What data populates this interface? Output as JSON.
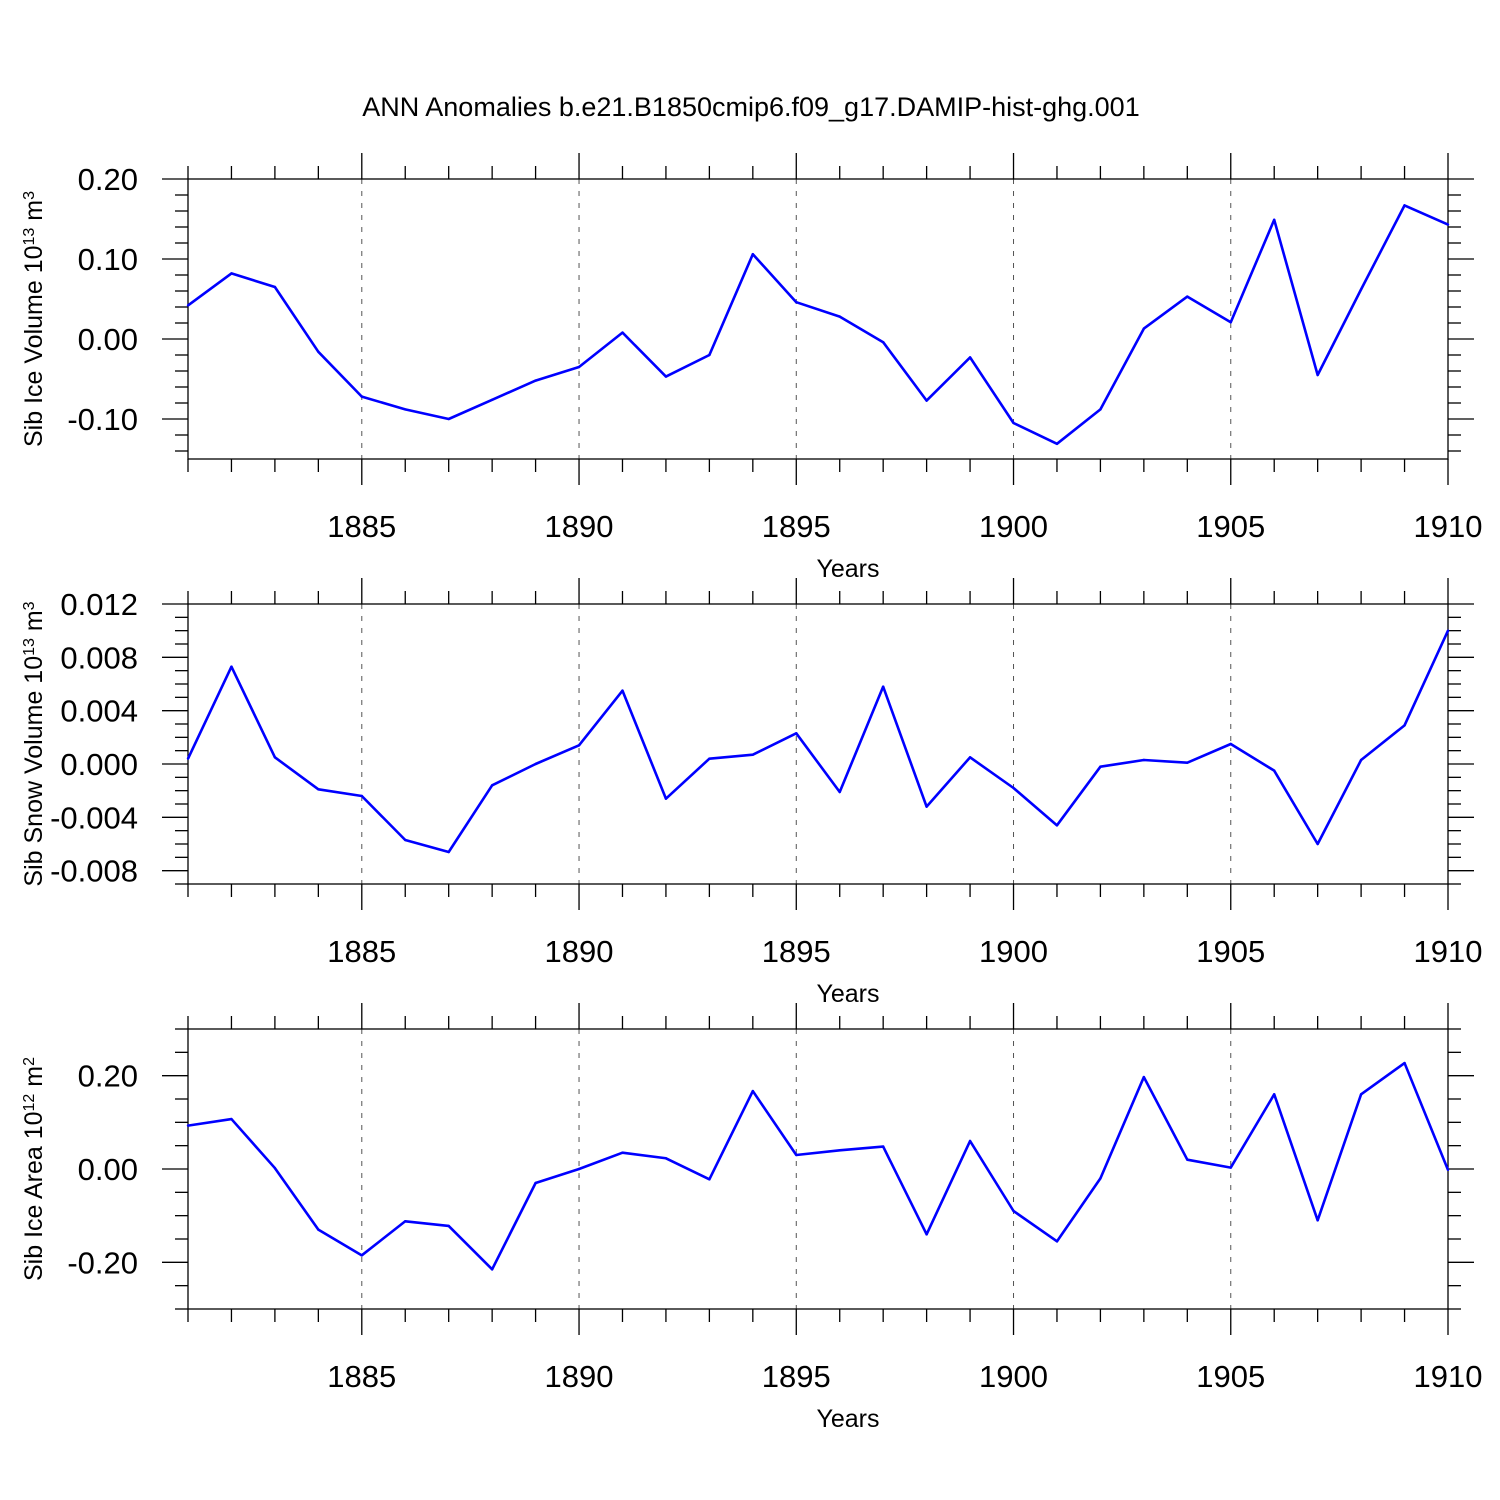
{
  "title": "ANN Anomalies b.e21.B1850cmip6.f09_g17.DAMIP-hist-ghg.001",
  "line_color": "#0000ff",
  "chart_data": [
    {
      "type": "line",
      "title": "ANN Anomalies b.e21.B1850cmip6.f09_g17.DAMIP-hist-ghg.001",
      "xlabel": "Years",
      "ylabel": {
        "base": "Sib Ice Volume 10",
        "exp": "13",
        "unit": " m",
        "unit_exp": "3"
      },
      "xlim": [
        1881,
        1910
      ],
      "ylim": [
        -0.15,
        0.2
      ],
      "xticks": [
        1885,
        1890,
        1895,
        1900,
        1905,
        1910
      ],
      "xtick_labels": [
        "1885",
        "1890",
        "1895",
        "1900",
        "1905",
        "1910"
      ],
      "yticks": [
        0.2,
        0.1,
        0.0,
        -0.1
      ],
      "ytick_labels": [
        "0.20",
        "0.10",
        "0.00",
        "-0.10"
      ],
      "y_minor_step": 0.02,
      "grid": "vertical dashed at major x ticks",
      "x": [
        1881,
        1882,
        1883,
        1884,
        1885,
        1886,
        1887,
        1888,
        1889,
        1890,
        1891,
        1892,
        1893,
        1894,
        1895,
        1896,
        1897,
        1898,
        1899,
        1900,
        1901,
        1902,
        1903,
        1904,
        1905,
        1906,
        1907,
        1908,
        1909,
        1910
      ],
      "series": [
        {
          "values": [
            0.042,
            0.082,
            0.065,
            -0.016,
            -0.072,
            -0.088,
            -0.1,
            -0.076,
            -0.052,
            -0.035,
            0.008,
            -0.047,
            -0.02,
            0.106,
            0.046,
            0.028,
            -0.004,
            -0.077,
            -0.023,
            -0.105,
            -0.131,
            -0.088,
            0.013,
            0.053,
            0.021,
            0.149,
            -0.045,
            0.062,
            0.167,
            0.143
          ]
        }
      ]
    },
    {
      "type": "line",
      "xlabel": "Years",
      "ylabel": {
        "base": "Sib Snow Volume 10",
        "exp": "13",
        "unit": " m",
        "unit_exp": "3"
      },
      "xlim": [
        1881,
        1910
      ],
      "ylim": [
        -0.009,
        0.012
      ],
      "xticks": [
        1885,
        1890,
        1895,
        1900,
        1905,
        1910
      ],
      "xtick_labels": [
        "1885",
        "1890",
        "1895",
        "1900",
        "1905",
        "1910"
      ],
      "yticks": [
        0.012,
        0.008,
        0.004,
        0.0,
        -0.004,
        -0.008
      ],
      "ytick_labels": [
        "0.012",
        "0.008",
        "0.004",
        "0.000",
        "-0.004",
        "-0.008"
      ],
      "y_minor_step": 0.001,
      "grid": "vertical dashed at major x ticks",
      "x": [
        1881,
        1882,
        1883,
        1884,
        1885,
        1886,
        1887,
        1888,
        1889,
        1890,
        1891,
        1892,
        1893,
        1894,
        1895,
        1896,
        1897,
        1898,
        1899,
        1900,
        1901,
        1902,
        1903,
        1904,
        1905,
        1906,
        1907,
        1908,
        1909,
        1910
      ],
      "series": [
        {
          "values": [
            0.0004,
            0.0073,
            0.0005,
            -0.0019,
            -0.0024,
            -0.0057,
            -0.0066,
            -0.0016,
            0.0,
            0.0014,
            0.0055,
            -0.0026,
            0.0004,
            0.0007,
            0.0023,
            -0.0021,
            0.0058,
            -0.0032,
            0.0005,
            -0.0018,
            -0.0046,
            -0.0002,
            0.0003,
            0.0001,
            0.0015,
            -0.0005,
            -0.006,
            0.0003,
            0.0029,
            0.01
          ]
        }
      ]
    },
    {
      "type": "line",
      "xlabel": "Years",
      "ylabel": {
        "base": "Sib Ice Area 10",
        "exp": "12",
        "unit": " m",
        "unit_exp": "2"
      },
      "xlim": [
        1881,
        1910
      ],
      "ylim": [
        -0.3,
        0.3
      ],
      "xticks": [
        1885,
        1890,
        1895,
        1900,
        1905,
        1910
      ],
      "xtick_labels": [
        "1885",
        "1890",
        "1895",
        "1900",
        "1905",
        "1910"
      ],
      "yticks": [
        0.2,
        0.0,
        -0.2
      ],
      "ytick_labels": [
        "0.20",
        "0.00",
        "-0.20"
      ],
      "y_minor_step": 0.05,
      "grid": "vertical dashed at major x ticks",
      "x": [
        1881,
        1882,
        1883,
        1884,
        1885,
        1886,
        1887,
        1888,
        1889,
        1890,
        1891,
        1892,
        1893,
        1894,
        1895,
        1896,
        1897,
        1898,
        1899,
        1900,
        1901,
        1902,
        1903,
        1904,
        1905,
        1906,
        1907,
        1908,
        1909,
        1910
      ],
      "series": [
        {
          "values": [
            0.093,
            0.107,
            0.002,
            -0.13,
            -0.185,
            -0.112,
            -0.122,
            -0.215,
            -0.03,
            0.0,
            0.035,
            0.023,
            -0.022,
            0.167,
            0.03,
            0.04,
            0.048,
            -0.14,
            0.06,
            -0.09,
            -0.155,
            -0.02,
            0.197,
            0.02,
            0.003,
            0.16,
            -0.11,
            0.16,
            0.227,
            -0.002
          ]
        }
      ]
    }
  ]
}
